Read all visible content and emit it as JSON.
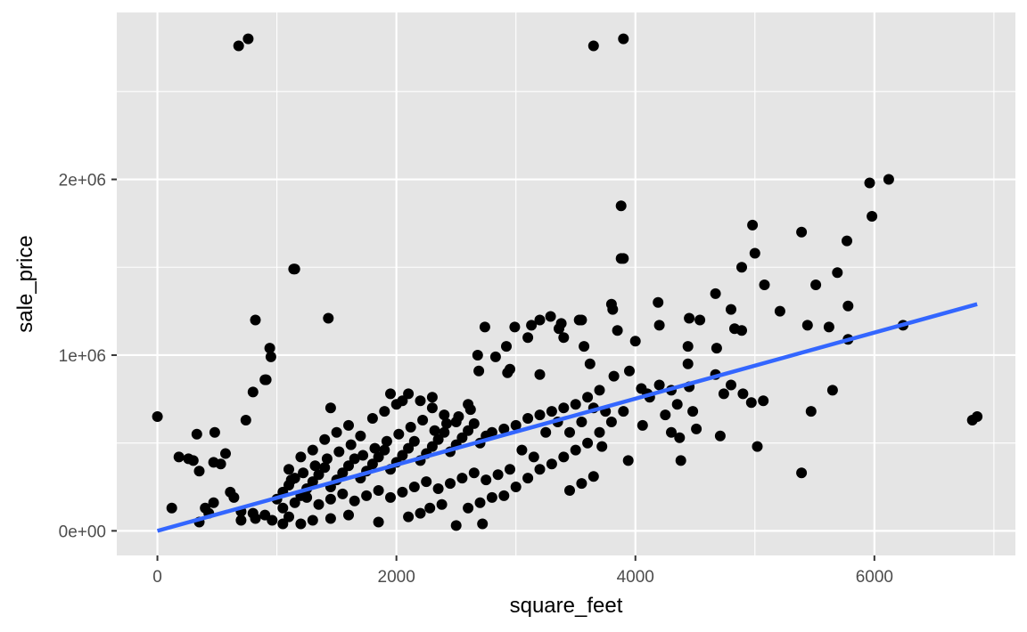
{
  "chart_data": {
    "type": "scatter",
    "xlabel": "square_feet",
    "ylabel": "sale_price",
    "xlim": [
      -340,
      7180
    ],
    "ylim": [
      -140000,
      2950000
    ],
    "x_ticks": [
      {
        "value": 0,
        "label": "0"
      },
      {
        "value": 2000,
        "label": "2000"
      },
      {
        "value": 4000,
        "label": "4000"
      },
      {
        "value": 6000,
        "label": "6000"
      }
    ],
    "y_ticks": [
      {
        "value": 0,
        "label": "0e+00"
      },
      {
        "value": 1000000,
        "label": "1e+06"
      },
      {
        "value": 2000000,
        "label": "2e+06"
      }
    ],
    "grid": true,
    "panel_background": "#e5e5e5",
    "grid_color": "#ffffff",
    "point_color": "#000000",
    "trend_line_color": "#3366ff",
    "trend_line": {
      "x": [
        0,
        6860
      ],
      "y": [
        0,
        1290000
      ]
    },
    "series": [
      {
        "points": [
          [
            0,
            650000
          ],
          [
            680,
            2760000
          ],
          [
            760,
            2800000
          ],
          [
            3650,
            2760000
          ],
          [
            3900,
            2800000
          ],
          [
            6120,
            2000000
          ],
          [
            5960,
            1980000
          ],
          [
            5980,
            1790000
          ],
          [
            3880,
            1850000
          ],
          [
            4980,
            1740000
          ],
          [
            5390,
            1700000
          ],
          [
            5770,
            1650000
          ],
          [
            5000,
            1580000
          ],
          [
            3900,
            1550000
          ],
          [
            3880,
            1550000
          ],
          [
            4890,
            1500000
          ],
          [
            1140,
            1490000
          ],
          [
            1150,
            1490000
          ],
          [
            5690,
            1470000
          ],
          [
            5510,
            1400000
          ],
          [
            5080,
            1400000
          ],
          [
            4670,
            1350000
          ],
          [
            4190,
            1300000
          ],
          [
            3800,
            1290000
          ],
          [
            5780,
            1280000
          ],
          [
            4800,
            1260000
          ],
          [
            5210,
            1250000
          ],
          [
            3810,
            1260000
          ],
          [
            820,
            1200000
          ],
          [
            1430,
            1210000
          ],
          [
            3530,
            1200000
          ],
          [
            3290,
            1220000
          ],
          [
            3200,
            1200000
          ],
          [
            3550,
            1200000
          ],
          [
            4450,
            1210000
          ],
          [
            4200,
            1170000
          ],
          [
            5440,
            1170000
          ],
          [
            5620,
            1160000
          ],
          [
            6240,
            1170000
          ],
          [
            2990,
            1160000
          ],
          [
            3850,
            1140000
          ],
          [
            4890,
            1140000
          ],
          [
            4830,
            1150000
          ],
          [
            3360,
            1150000
          ],
          [
            5780,
            1090000
          ],
          [
            3400,
            1100000
          ],
          [
            3100,
            1100000
          ],
          [
            4000,
            1080000
          ],
          [
            4440,
            1050000
          ],
          [
            4680,
            1040000
          ],
          [
            940,
            1040000
          ],
          [
            950,
            990000
          ],
          [
            3570,
            1050000
          ],
          [
            2920,
            1050000
          ],
          [
            2680,
            1000000
          ],
          [
            2830,
            990000
          ],
          [
            3620,
            950000
          ],
          [
            4440,
            950000
          ],
          [
            3950,
            910000
          ],
          [
            2950,
            920000
          ],
          [
            2690,
            910000
          ],
          [
            2930,
            900000
          ],
          [
            3200,
            890000
          ],
          [
            4670,
            890000
          ],
          [
            5020,
            480000
          ],
          [
            900,
            860000
          ],
          [
            910,
            860000
          ],
          [
            800,
            790000
          ],
          [
            740,
            630000
          ],
          [
            2740,
            1160000
          ],
          [
            3130,
            1170000
          ],
          [
            3380,
            1180000
          ],
          [
            4540,
            1200000
          ],
          [
            4800,
            830000
          ],
          [
            4740,
            780000
          ],
          [
            4900,
            780000
          ],
          [
            5070,
            740000
          ],
          [
            4970,
            730000
          ],
          [
            5470,
            680000
          ],
          [
            5650,
            800000
          ],
          [
            4480,
            680000
          ],
          [
            4350,
            720000
          ],
          [
            4250,
            660000
          ],
          [
            4100,
            780000
          ],
          [
            4120,
            760000
          ],
          [
            4200,
            830000
          ],
          [
            4300,
            800000
          ],
          [
            4450,
            820000
          ],
          [
            4050,
            810000
          ],
          [
            4060,
            600000
          ],
          [
            4370,
            530000
          ],
          [
            4300,
            560000
          ],
          [
            4510,
            580000
          ],
          [
            4710,
            540000
          ],
          [
            4380,
            400000
          ],
          [
            3940,
            400000
          ],
          [
            3720,
            480000
          ],
          [
            3650,
            310000
          ],
          [
            3550,
            270000
          ],
          [
            3450,
            230000
          ],
          [
            5390,
            330000
          ],
          [
            6820,
            630000
          ],
          [
            6860,
            650000
          ],
          [
            120,
            130000
          ],
          [
            180,
            420000
          ],
          [
            260,
            410000
          ],
          [
            300,
            400000
          ],
          [
            330,
            550000
          ],
          [
            350,
            340000
          ],
          [
            480,
            560000
          ],
          [
            470,
            390000
          ],
          [
            530,
            380000
          ],
          [
            570,
            440000
          ],
          [
            400,
            130000
          ],
          [
            430,
            100000
          ],
          [
            350,
            50000
          ],
          [
            470,
            160000
          ],
          [
            610,
            220000
          ],
          [
            640,
            190000
          ],
          [
            700,
            110000
          ],
          [
            700,
            60000
          ],
          [
            800,
            100000
          ],
          [
            820,
            70000
          ],
          [
            900,
            90000
          ],
          [
            960,
            60000
          ],
          [
            1050,
            40000
          ],
          [
            1100,
            80000
          ],
          [
            1200,
            40000
          ],
          [
            1300,
            60000
          ],
          [
            1450,
            70000
          ],
          [
            1600,
            90000
          ],
          [
            1850,
            50000
          ],
          [
            2100,
            80000
          ],
          [
            2200,
            100000
          ],
          [
            2280,
            130000
          ],
          [
            2380,
            150000
          ],
          [
            2500,
            30000
          ],
          [
            2720,
            40000
          ],
          [
            2600,
            130000
          ],
          [
            2700,
            160000
          ],
          [
            2800,
            190000
          ],
          [
            2900,
            200000
          ],
          [
            3000,
            250000
          ],
          [
            3100,
            300000
          ],
          [
            3200,
            350000
          ],
          [
            3300,
            380000
          ],
          [
            3400,
            420000
          ],
          [
            3500,
            460000
          ],
          [
            3600,
            500000
          ],
          [
            3700,
            560000
          ],
          [
            3800,
            620000
          ],
          [
            3900,
            680000
          ],
          [
            3820,
            880000
          ],
          [
            3700,
            800000
          ],
          [
            3600,
            760000
          ],
          [
            3500,
            720000
          ],
          [
            3400,
            700000
          ],
          [
            3300,
            680000
          ],
          [
            3200,
            660000
          ],
          [
            3100,
            640000
          ],
          [
            3000,
            600000
          ],
          [
            2900,
            580000
          ],
          [
            2800,
            560000
          ],
          [
            3050,
            460000
          ],
          [
            3150,
            420000
          ],
          [
            3250,
            560000
          ],
          [
            3350,
            620000
          ],
          [
            3450,
            560000
          ],
          [
            3550,
            620000
          ],
          [
            3650,
            700000
          ],
          [
            3750,
            680000
          ],
          [
            1000,
            180000
          ],
          [
            1050,
            220000
          ],
          [
            1100,
            260000
          ],
          [
            1150,
            300000
          ],
          [
            1200,
            200000
          ],
          [
            1250,
            240000
          ],
          [
            1300,
            280000
          ],
          [
            1350,
            320000
          ],
          [
            1400,
            360000
          ],
          [
            1450,
            250000
          ],
          [
            1500,
            290000
          ],
          [
            1550,
            330000
          ],
          [
            1600,
            370000
          ],
          [
            1650,
            410000
          ],
          [
            1700,
            300000
          ],
          [
            1750,
            340000
          ],
          [
            1800,
            380000
          ],
          [
            1850,
            420000
          ],
          [
            1900,
            460000
          ],
          [
            1950,
            350000
          ],
          [
            2000,
            390000
          ],
          [
            2050,
            430000
          ],
          [
            2100,
            470000
          ],
          [
            2150,
            510000
          ],
          [
            2200,
            400000
          ],
          [
            2250,
            440000
          ],
          [
            2300,
            480000
          ],
          [
            2350,
            520000
          ],
          [
            2400,
            560000
          ],
          [
            2450,
            450000
          ],
          [
            2500,
            490000
          ],
          [
            2550,
            530000
          ],
          [
            2600,
            570000
          ],
          [
            2650,
            610000
          ],
          [
            2700,
            500000
          ],
          [
            2750,
            540000
          ],
          [
            1100,
            350000
          ],
          [
            1200,
            420000
          ],
          [
            1300,
            460000
          ],
          [
            1400,
            520000
          ],
          [
            1500,
            560000
          ],
          [
            1600,
            600000
          ],
          [
            1700,
            540000
          ],
          [
            1800,
            640000
          ],
          [
            1900,
            680000
          ],
          [
            2000,
            720000
          ],
          [
            2100,
            780000
          ],
          [
            2200,
            740000
          ],
          [
            2300,
            700000
          ],
          [
            2400,
            660000
          ],
          [
            2500,
            620000
          ],
          [
            2600,
            720000
          ],
          [
            1450,
            700000
          ],
          [
            1950,
            780000
          ],
          [
            2050,
            740000
          ],
          [
            2300,
            760000
          ],
          [
            1050,
            130000
          ],
          [
            1150,
            160000
          ],
          [
            1250,
            190000
          ],
          [
            1350,
            150000
          ],
          [
            1450,
            180000
          ],
          [
            1550,
            210000
          ],
          [
            1650,
            170000
          ],
          [
            1750,
            200000
          ],
          [
            1850,
            230000
          ],
          [
            1950,
            190000
          ],
          [
            2050,
            220000
          ],
          [
            2150,
            250000
          ],
          [
            2250,
            280000
          ],
          [
            2350,
            240000
          ],
          [
            2450,
            270000
          ],
          [
            2550,
            300000
          ],
          [
            2650,
            330000
          ],
          [
            2750,
            290000
          ],
          [
            2850,
            320000
          ],
          [
            2950,
            350000
          ],
          [
            1120,
            290000
          ],
          [
            1220,
            330000
          ],
          [
            1320,
            370000
          ],
          [
            1420,
            410000
          ],
          [
            1520,
            450000
          ],
          [
            1620,
            490000
          ],
          [
            1720,
            430000
          ],
          [
            1820,
            470000
          ],
          [
            1920,
            510000
          ],
          [
            2020,
            550000
          ],
          [
            2120,
            590000
          ],
          [
            2220,
            630000
          ],
          [
            2320,
            570000
          ],
          [
            2420,
            610000
          ],
          [
            2520,
            650000
          ],
          [
            2620,
            690000
          ]
        ]
      }
    ]
  }
}
